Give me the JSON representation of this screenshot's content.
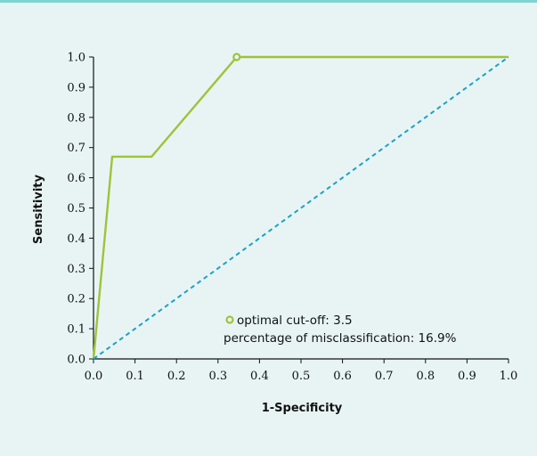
{
  "colors": {
    "background": "#e8f4f4",
    "top_rule": "#7fd3d3",
    "roc_line": "#9cc43a",
    "reference_line": "#1ba3c4",
    "axis": "#111111"
  },
  "chart_data": {
    "type": "line",
    "xlabel": "1-Specificity",
    "ylabel": "Sensitivity",
    "xlim": [
      0.0,
      1.0
    ],
    "ylim": [
      0.0,
      1.0
    ],
    "x_ticks": [
      "0.0",
      "0.1",
      "0.2",
      "0.3",
      "0.4",
      "0.5",
      "0.6",
      "0.7",
      "0.8",
      "0.9",
      "1.0"
    ],
    "y_ticks": [
      "0.0",
      "0.1",
      "0.2",
      "0.3",
      "0.4",
      "0.5",
      "0.6",
      "0.7",
      "0.8",
      "0.9",
      "1.0"
    ],
    "grid": false,
    "series": [
      {
        "style": "solid",
        "color": "#9cc43a",
        "points": [
          [
            0.0,
            0.0
          ],
          [
            0.045,
            0.67
          ],
          [
            0.14,
            0.67
          ],
          [
            0.345,
            1.0
          ],
          [
            1.0,
            1.0
          ]
        ]
      },
      {
        "style": "dashed",
        "color": "#1ba3c4",
        "points": [
          [
            0.0,
            0.0
          ],
          [
            1.0,
            1.0
          ]
        ]
      }
    ],
    "optimal_point": [
      0.345,
      1.0
    ],
    "legend": {
      "placement": "lower-right",
      "marker": "open-circle",
      "line1": "optimal cut-off: 3.5",
      "line2": "percentage of misclassification: 16.9%"
    }
  }
}
